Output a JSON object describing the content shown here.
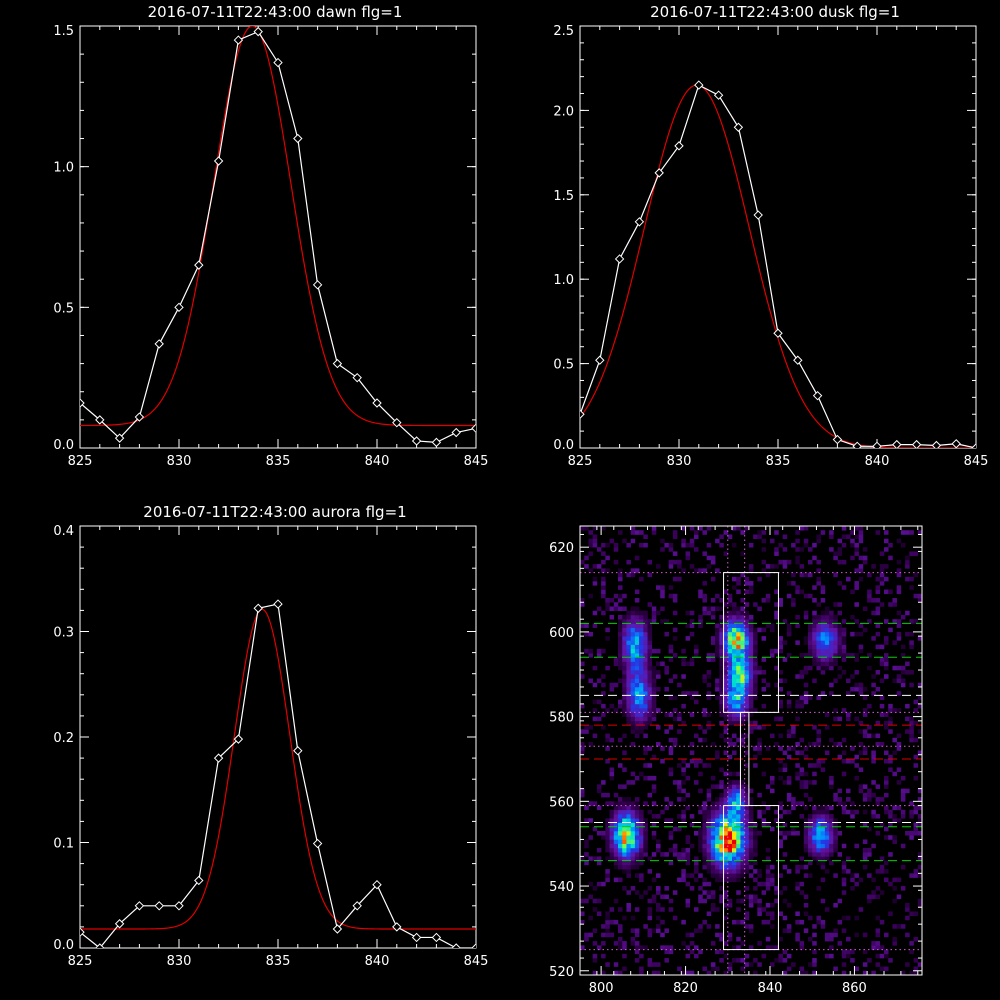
{
  "chart_data": [
    {
      "type": "line",
      "title": "2016-07-11T22:43:00 dawn flg=1",
      "xlim": [
        825,
        845
      ],
      "ylim": [
        0,
        1.5
      ],
      "xticks": [
        "825",
        "830",
        "835",
        "840",
        "845"
      ],
      "yticks": [
        "0.0",
        "0.5",
        "1.0",
        "1.5"
      ],
      "series": [
        {
          "kind": "data",
          "color": "#ffffff",
          "marker": "diamond",
          "x": [
            825,
            826,
            827,
            828,
            829,
            830,
            831,
            832,
            833,
            834,
            835,
            836,
            837,
            838,
            839,
            840,
            841,
            842,
            843,
            844,
            845
          ],
          "y": [
            0.16,
            0.1,
            0.035,
            0.11,
            0.37,
            0.5,
            0.65,
            1.02,
            1.45,
            1.48,
            1.37,
            1.1,
            0.58,
            0.3,
            0.25,
            0.16,
            0.09,
            0.025,
            0.02,
            0.055,
            0.07
          ]
        },
        {
          "kind": "fit",
          "color": "#e00000",
          "gaussian": {
            "amplitude": 1.42,
            "center": 833.7,
            "sigma": 1.95,
            "offset": 0.08
          }
        }
      ]
    },
    {
      "type": "line",
      "title": "2016-07-11T22:43:00 dusk flg=1",
      "xlim": [
        825,
        845
      ],
      "ylim": [
        0,
        2.5
      ],
      "xticks": [
        "825",
        "830",
        "835",
        "840",
        "845"
      ],
      "yticks": [
        "0.0",
        "0.5",
        "1.0",
        "1.5",
        "2.0",
        "2.5"
      ],
      "series": [
        {
          "kind": "data",
          "color": "#ffffff",
          "marker": "diamond",
          "x": [
            825,
            826,
            827,
            828,
            829,
            830,
            831,
            832,
            833,
            834,
            835,
            836,
            837,
            838,
            839,
            840,
            841,
            842,
            843,
            844,
            845
          ],
          "y": [
            0.2,
            0.52,
            1.12,
            1.34,
            1.63,
            1.79,
            2.15,
            2.09,
            1.9,
            1.38,
            0.68,
            0.52,
            0.31,
            0.05,
            0.01,
            0.01,
            0.02,
            0.02,
            0.015,
            0.025,
            0.0
          ]
        },
        {
          "kind": "fit",
          "color": "#e00000",
          "gaussian": {
            "amplitude": 2.15,
            "center": 830.9,
            "sigma": 2.65,
            "offset": 0.0
          }
        }
      ]
    },
    {
      "type": "line",
      "title": "2016-07-11T22:43:00 aurora flg=1",
      "xlim": [
        825,
        845
      ],
      "ylim": [
        0,
        0.4
      ],
      "xticks": [
        "825",
        "830",
        "835",
        "840",
        "845"
      ],
      "yticks": [
        "0.0",
        "0.1",
        "0.2",
        "0.3",
        "0.4"
      ],
      "series": [
        {
          "kind": "data",
          "color": "#ffffff",
          "marker": "diamond",
          "x": [
            825,
            826,
            827,
            828,
            829,
            830,
            831,
            832,
            833,
            834,
            835,
            836,
            837,
            838,
            839,
            840,
            841,
            842,
            843,
            844,
            845
          ],
          "y": [
            0.015,
            0.0,
            0.023,
            0.04,
            0.04,
            0.04,
            0.064,
            0.18,
            0.198,
            0.322,
            0.326,
            0.187,
            0.099,
            0.018,
            0.04,
            0.06,
            0.02,
            0.01,
            0.01,
            0.0,
            0.0
          ]
        },
        {
          "kind": "fit",
          "color": "#e00000",
          "gaussian": {
            "amplitude": 0.303,
            "center": 834.2,
            "sigma": 1.4,
            "offset": 0.018
          }
        }
      ]
    },
    {
      "type": "heatmap",
      "title": "",
      "xlim": [
        795,
        876
      ],
      "ylim": [
        519,
        625
      ],
      "xticks": [
        "800",
        "820",
        "840",
        "860"
      ],
      "yticks": [
        "520",
        "540",
        "560",
        "580",
        "600",
        "620"
      ],
      "blobs": [
        {
          "x": 808,
          "y": 597,
          "sx": 2.0,
          "sy": 4.0,
          "peak": 0.55
        },
        {
          "x": 809,
          "y": 585,
          "sx": 2.0,
          "sy": 4.0,
          "peak": 0.5
        },
        {
          "x": 806,
          "y": 552,
          "sx": 2.2,
          "sy": 3.6,
          "peak": 0.85
        },
        {
          "x": 832,
          "y": 598,
          "sx": 2.1,
          "sy": 3.2,
          "peak": 0.85
        },
        {
          "x": 833,
          "y": 590,
          "sx": 2.0,
          "sy": 2.8,
          "peak": 0.6
        },
        {
          "x": 832,
          "y": 584,
          "sx": 2.0,
          "sy": 3.0,
          "peak": 0.5
        },
        {
          "x": 830,
          "y": 551,
          "sx": 2.8,
          "sy": 4.2,
          "peak": 1.0
        },
        {
          "x": 832,
          "y": 560,
          "sx": 1.6,
          "sy": 2.5,
          "peak": 0.5
        },
        {
          "x": 853,
          "y": 598,
          "sx": 2.2,
          "sy": 3.2,
          "peak": 0.45
        },
        {
          "x": 852,
          "y": 552,
          "sx": 2.0,
          "sy": 3.0,
          "peak": 0.55
        }
      ],
      "rectangles": [
        {
          "x0": 829,
          "x1": 842,
          "y0": 581,
          "y1": 614,
          "color": "#ffffff"
        },
        {
          "x0": 829,
          "x1": 842,
          "y0": 525,
          "y1": 559,
          "color": "#ffffff"
        },
        {
          "x0": 833,
          "x1": 835,
          "y0": 559,
          "y1": 581,
          "color": "#ffffff"
        }
      ],
      "hlines": [
        {
          "y": 614,
          "color": "#d060d0",
          "style": "dotted"
        },
        {
          "y": 602,
          "color": "#00d000",
          "style": "dashed"
        },
        {
          "y": 594,
          "color": "#00d000",
          "style": "dashed"
        },
        {
          "y": 585,
          "color": "#ffffff",
          "style": "dashed"
        },
        {
          "y": 581,
          "color": "#d060d0",
          "style": "dotted"
        },
        {
          "y": 578,
          "color": "#e00000",
          "style": "dashed"
        },
        {
          "y": 573,
          "color": "#d060d0",
          "style": "dotted"
        },
        {
          "y": 570,
          "color": "#e00000",
          "style": "dashed"
        },
        {
          "y": 559,
          "color": "#d060d0",
          "style": "dotted"
        },
        {
          "y": 555,
          "color": "#ffffff",
          "style": "dashed"
        },
        {
          "y": 554,
          "color": "#00d000",
          "style": "dashed"
        },
        {
          "y": 546,
          "color": "#00d000",
          "style": "dashed"
        },
        {
          "y": 525,
          "color": "#d060d0",
          "style": "dotted"
        }
      ],
      "vlines": [
        {
          "x": 830,
          "color": "#d060d0",
          "style": "dotted"
        },
        {
          "x": 834,
          "color": "#d060d0",
          "style": "dotted"
        }
      ]
    }
  ]
}
